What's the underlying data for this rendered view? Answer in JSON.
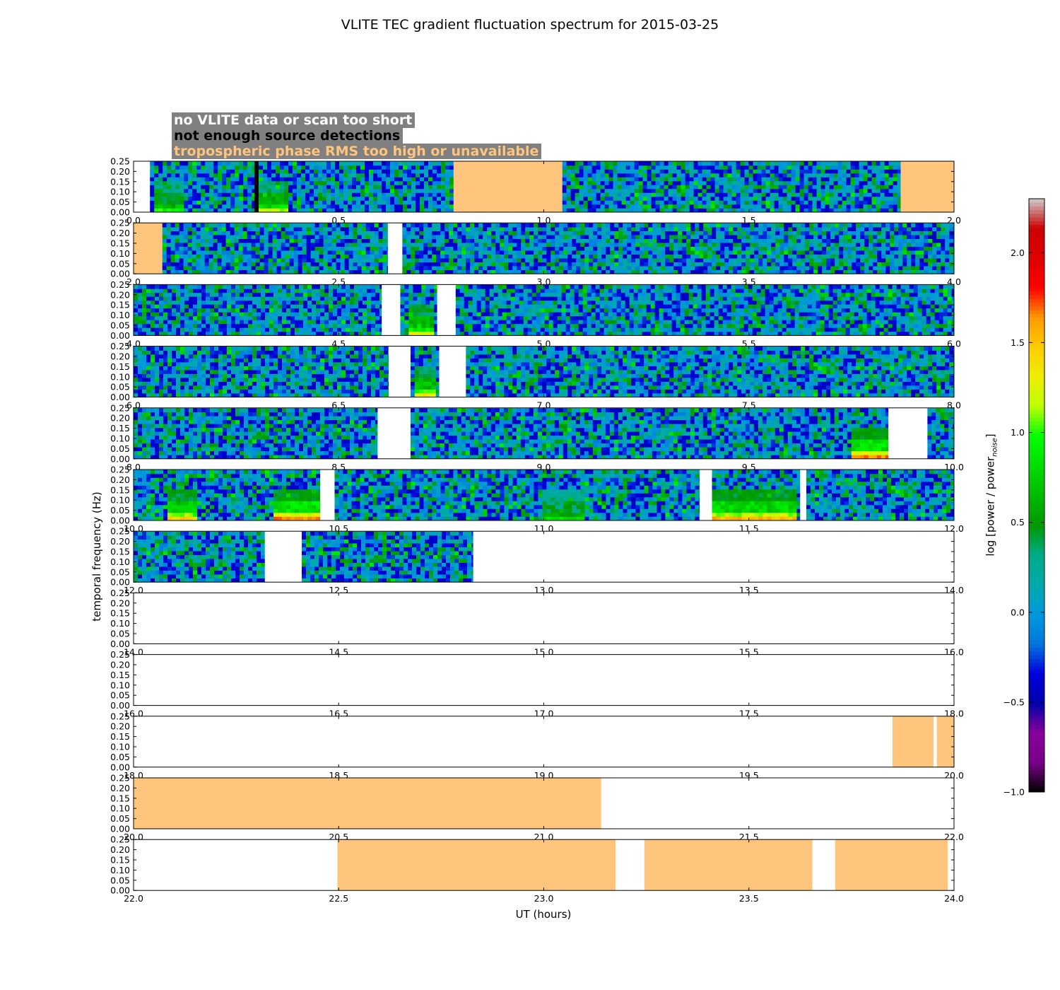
{
  "chart_data": {
    "type": "heatmap",
    "title": "VLITE TEC gradient fluctuation spectrum for 2015-03-25",
    "xlabel": "UT (hours)",
    "ylabel": "temporal frequency (Hz)",
    "ylim": [
      0,
      0.25
    ],
    "yticks": [
      "0.00",
      "0.05",
      "0.10",
      "0.15",
      "0.20",
      "0.25"
    ],
    "colorbar": {
      "label": "log [power / power",
      "label_subscript": "noise",
      "label_end": "]",
      "range": [
        -1.0,
        2.3
      ],
      "ticks": [
        "−1.0",
        "−0.5",
        "0.0",
        "0.5",
        "1.0",
        "1.5",
        "2.0"
      ],
      "tick_values": [
        -1.0,
        -0.5,
        0.0,
        0.5,
        1.0,
        1.5,
        2.0
      ],
      "colormap": "nipy_spectral"
    },
    "legend": [
      {
        "text": "no VLITE data or scan too short",
        "color": "#ffffff"
      },
      {
        "text": "not enough source detections",
        "color": "#000000"
      },
      {
        "text": "tropospheric phase RMS too high or unavailable",
        "color": "#ffc57d"
      }
    ],
    "legend_placement": "top-left",
    "colors": {
      "no_data": "#ffffff",
      "few_detections": "#000000",
      "troposphere_flag": "#ffc57d"
    },
    "panels": [
      {
        "xlim": [
          0.0,
          2.0
        ],
        "xticks": [
          "0.0",
          "0.5",
          "1.0",
          "1.5",
          "2.0"
        ],
        "spectrum": [
          [
            0.04,
            0.295
          ],
          [
            0.305,
            0.78
          ],
          [
            1.045,
            1.87
          ]
        ],
        "no_data": [
          [
            0.0,
            0.035
          ]
        ],
        "few_detections": [
          [
            0.295,
            0.305
          ]
        ],
        "troposphere": [
          [
            0.78,
            1.045
          ],
          [
            1.87,
            2.0
          ]
        ],
        "low_freq_bursts": [
          [
            0.05,
            0.12,
            0.6
          ],
          [
            0.3,
            0.38,
            0.8
          ]
        ]
      },
      {
        "xlim": [
          2.0,
          4.0
        ],
        "xticks": [
          "2.0",
          "2.5",
          "3.0",
          "3.5",
          "4.0"
        ],
        "spectrum": [
          [
            2.07,
            2.62
          ],
          [
            2.655,
            4.0
          ]
        ],
        "no_data": [
          [
            2.62,
            2.655
          ]
        ],
        "few_detections": [],
        "troposphere": [
          [
            2.0,
            2.07
          ]
        ],
        "low_freq_bursts": []
      },
      {
        "xlim": [
          4.0,
          6.0
        ],
        "xticks": [
          "4.0",
          "4.5",
          "5.0",
          "5.5",
          "6.0"
        ],
        "spectrum": [
          [
            4.0,
            4.605
          ],
          [
            4.65,
            4.74
          ],
          [
            4.785,
            6.0
          ]
        ],
        "no_data": [
          [
            4.605,
            4.65
          ],
          [
            4.74,
            4.785
          ]
        ],
        "few_detections": [],
        "troposphere": [],
        "low_freq_bursts": [
          [
            4.67,
            4.73,
            0.9
          ]
        ]
      },
      {
        "xlim": [
          6.0,
          8.0
        ],
        "xticks": [
          "6.0",
          "6.5",
          "7.0",
          "7.5",
          "8.0"
        ],
        "spectrum": [
          [
            6.0,
            6.622
          ],
          [
            6.675,
            6.745
          ],
          [
            6.81,
            8.0
          ]
        ],
        "no_data": [
          [
            6.622,
            6.675
          ],
          [
            6.745,
            6.81
          ]
        ],
        "few_detections": [],
        "troposphere": [],
        "low_freq_bursts": [
          [
            6.69,
            6.74,
            1.0
          ]
        ]
      },
      {
        "xlim": [
          8.0,
          10.0
        ],
        "xticks": [
          "8.0",
          "8.5",
          "9.0",
          "9.5",
          "10.0"
        ],
        "spectrum": [
          [
            8.0,
            8.595
          ],
          [
            8.675,
            9.84
          ],
          [
            9.935,
            10.0
          ]
        ],
        "no_data": [
          [
            8.595,
            8.675
          ],
          [
            9.84,
            9.935
          ]
        ],
        "few_detections": [],
        "troposphere": [],
        "low_freq_bursts": [
          [
            9.75,
            9.84,
            1.3
          ]
        ]
      },
      {
        "xlim": [
          10.0,
          12.0
        ],
        "xticks": [
          "10.0",
          "10.5",
          "11.0",
          "11.5",
          "12.0"
        ],
        "spectrum": [
          [
            10.0,
            10.455
          ],
          [
            10.49,
            11.38
          ],
          [
            11.41,
            11.625
          ],
          [
            11.64,
            12.0
          ]
        ],
        "no_data": [
          [
            10.455,
            10.49
          ],
          [
            11.38,
            11.41
          ],
          [
            11.625,
            11.64
          ]
        ],
        "few_detections": [],
        "troposphere": [],
        "low_freq_bursts": [
          [
            10.08,
            10.16,
            1.1
          ],
          [
            10.345,
            10.45,
            1.3
          ],
          [
            11.41,
            11.62,
            1.2
          ],
          [
            11.0,
            11.1,
            0.5
          ]
        ]
      },
      {
        "xlim": [
          12.0,
          14.0
        ],
        "xticks": [
          "12.0",
          "12.5",
          "13.0",
          "13.5",
          "14.0"
        ],
        "spectrum": [
          [
            12.0,
            12.32
          ],
          [
            12.41,
            12.828
          ]
        ],
        "no_data": [
          [
            12.32,
            12.41
          ],
          [
            12.828,
            14.0
          ]
        ],
        "few_detections": [],
        "troposphere": [],
        "low_freq_bursts": []
      },
      {
        "xlim": [
          14.0,
          16.0
        ],
        "xticks": [
          "14.0",
          "14.5",
          "15.0",
          "15.5",
          "16.0"
        ],
        "spectrum": [],
        "no_data": [
          [
            14.0,
            16.0
          ]
        ],
        "few_detections": [],
        "troposphere": [],
        "low_freq_bursts": []
      },
      {
        "xlim": [
          16.0,
          18.0
        ],
        "xticks": [
          "16.0",
          "16.5",
          "17.0",
          "17.5",
          "18.0"
        ],
        "spectrum": [],
        "no_data": [
          [
            16.0,
            18.0
          ]
        ],
        "few_detections": [],
        "troposphere": [],
        "low_freq_bursts": []
      },
      {
        "xlim": [
          18.0,
          20.0
        ],
        "xticks": [
          "18.0",
          "18.5",
          "19.0",
          "19.5",
          "20.0"
        ],
        "spectrum": [],
        "no_data": [
          [
            18.0,
            19.85
          ],
          [
            19.95,
            19.958
          ]
        ],
        "few_detections": [],
        "troposphere": [
          [
            19.85,
            19.95
          ],
          [
            19.958,
            20.0
          ]
        ],
        "low_freq_bursts": []
      },
      {
        "xlim": [
          20.0,
          22.0
        ],
        "xticks": [
          "20.0",
          "20.5",
          "21.0",
          "21.5",
          "22.0"
        ],
        "spectrum": [],
        "no_data": [
          [
            21.14,
            22.0
          ]
        ],
        "few_detections": [],
        "troposphere": [
          [
            20.0,
            21.14
          ]
        ],
        "low_freq_bursts": []
      },
      {
        "xlim": [
          22.0,
          24.0
        ],
        "xticks": [
          "22.0",
          "22.5",
          "23.0",
          "23.5",
          "24.0"
        ],
        "spectrum": [],
        "no_data": [
          [
            22.0,
            22.497
          ],
          [
            23.175,
            23.245
          ],
          [
            23.655,
            23.71
          ],
          [
            23.985,
            24.0
          ]
        ],
        "few_detections": [],
        "troposphere": [
          [
            22.497,
            23.175
          ],
          [
            23.245,
            23.655
          ],
          [
            23.71,
            23.985
          ]
        ],
        "low_freq_bursts": []
      }
    ]
  }
}
